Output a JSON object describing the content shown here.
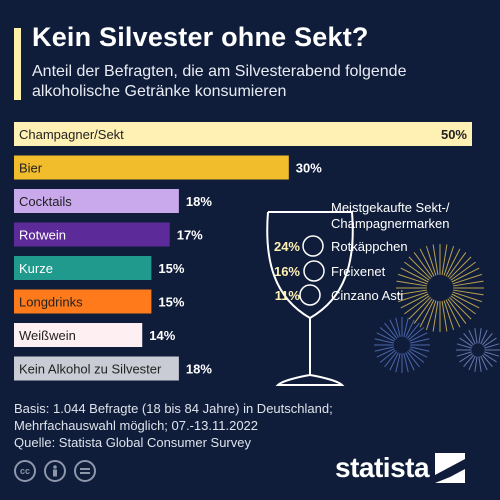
{
  "header": {
    "title": "Kein Silvester ohne Sekt?",
    "subtitle": "Anteil der Befragten, die am Silvesterabend folgende alkoholische Getränke konsumieren"
  },
  "chart_data": [
    {
      "type": "bar",
      "orientation": "horizontal",
      "categories": [
        "Champagner/Sekt",
        "Bier",
        "Cocktails",
        "Rotwein",
        "Kurze",
        "Longdrinks",
        "Weißwein",
        "Kein Alkohol zu Silvester"
      ],
      "values": [
        50,
        30,
        18,
        17,
        15,
        15,
        14,
        18
      ],
      "value_suffix": "%",
      "xlim": [
        0,
        50
      ],
      "colors": [
        "#fff1b4",
        "#f2bd2c",
        "#c9a8ec",
        "#5d2a99",
        "#1f9a8c",
        "#ff7a1a",
        "#fdeff2",
        "#c9ccd4"
      ],
      "label_colors": [
        "#222222",
        "#222222",
        "#222222",
        "#ffffff",
        "#ffffff",
        "#222222",
        "#222222",
        "#222222"
      ]
    },
    {
      "type": "table",
      "title": "Meistgekaufte Sekt-/ Champagnermarken",
      "title_lines": [
        "Meistgekaufte Sekt-/",
        "Champagnermarken"
      ],
      "rows": [
        {
          "value": "24%",
          "brand": "Rotkäppchen"
        },
        {
          "value": "16%",
          "brand": "Freixenet"
        },
        {
          "value": "11%",
          "brand": "Cinzano Asti"
        }
      ]
    }
  ],
  "footer": {
    "lines": [
      "Basis: 1.044 Befragte (18 bis 84 Jahre) in Deutschland;",
      "Mehrfachauswahl möglich; 07.-13.11.2022",
      "Quelle: Statista Global Consumer Survey"
    ]
  },
  "license_icons": [
    "cc-icon",
    "by-icon",
    "equals-icon"
  ],
  "logo": {
    "text": "statista"
  }
}
